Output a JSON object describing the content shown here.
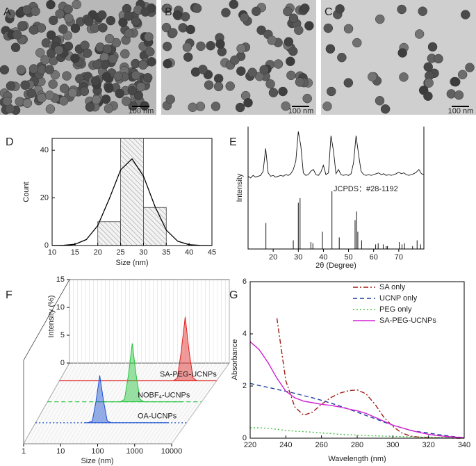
{
  "panel_labels": [
    "A",
    "B",
    "C",
    "D",
    "E",
    "F",
    "G"
  ],
  "images": [
    {
      "scale_bar": "100 nm"
    },
    {
      "scale_bar": "100 nm"
    },
    {
      "scale_bar": "100 nm"
    }
  ],
  "chart_data": [
    {
      "type": "histogram",
      "xlabel": "Size (nm)",
      "ylabel": "Count",
      "bins": [
        20,
        25,
        30,
        35
      ],
      "counts": [
        10,
        45,
        16
      ],
      "fit": {
        "x": [
          10,
          12.5,
          15,
          17.5,
          20,
          22.5,
          25,
          27.5,
          30,
          32.5,
          35,
          37.5,
          40,
          42.5,
          45
        ],
        "values": [
          0,
          0.08,
          0.54,
          2.5,
          8.4,
          19.5,
          31.8,
          36.4,
          29.2,
          16.5,
          6.5,
          1.8,
          0.35,
          0.05,
          0
        ]
      },
      "xlim": [
        10,
        45
      ],
      "xticks": [
        10,
        15,
        20,
        25,
        30,
        35,
        40,
        45
      ],
      "ylim": [
        0,
        45
      ],
      "yticks": [
        0,
        20,
        40
      ]
    },
    {
      "type": "xrd",
      "xlabel": "2θ (Degree)",
      "ylabel": "Intensity",
      "annotation": "JCPDS：#28-1192",
      "x": [
        10,
        11,
        12,
        13,
        14,
        15,
        16,
        17,
        18,
        19,
        20,
        21,
        22,
        23,
        24,
        25,
        26,
        27,
        28,
        29,
        30,
        31,
        32,
        33,
        34,
        35,
        36,
        37,
        38,
        39,
        40,
        41,
        42,
        43,
        44,
        45,
        46,
        47,
        48,
        49,
        50,
        51,
        52,
        53,
        54,
        55,
        56,
        57,
        58,
        59,
        60,
        61,
        62,
        63,
        64,
        65,
        66,
        67,
        68,
        69,
        70,
        71,
        72,
        73,
        74,
        75,
        76,
        77,
        78,
        79,
        80
      ],
      "values": [
        12,
        10,
        13,
        11,
        12,
        13,
        18,
        45,
        16,
        12,
        13,
        11,
        12,
        13,
        12,
        14,
        13,
        15,
        20,
        30,
        65,
        48,
        16,
        13,
        14,
        18,
        20,
        14,
        13,
        17,
        25,
        14,
        16,
        60,
        42,
        15,
        20,
        14,
        13,
        14,
        13,
        15,
        28,
        60,
        38,
        18,
        14,
        13,
        14,
        13,
        14,
        15,
        16,
        14,
        15,
        13,
        14,
        13,
        14,
        15,
        17,
        15,
        16,
        14,
        13,
        14,
        15,
        17,
        20,
        15,
        14
      ],
      "reference": {
        "positions": [
          17.1,
          28,
          30,
          30.7,
          35,
          35.8,
          39.6,
          43.4,
          46.3,
          52.6,
          53.2,
          53.7,
          55.2,
          60.8,
          61.8,
          63.8,
          65,
          65.5,
          70.2,
          71.3,
          72.3,
          75.5,
          77.3,
          78.7
        ],
        "heights": [
          0.45,
          0.15,
          0.8,
          0.88,
          0.12,
          0.1,
          0.3,
          1,
          0.2,
          0.5,
          0.65,
          0.3,
          0.15,
          0.08,
          0.1,
          0.08,
          0.05,
          0.05,
          0.12,
          0.08,
          0.1,
          0.05,
          0.15,
          0.08
        ]
      },
      "xlim": [
        10,
        80
      ],
      "xticks": [
        20,
        30,
        40,
        50,
        60,
        70
      ],
      "ylim": [
        0,
        70
      ]
    },
    {
      "type": "waterfall",
      "xlabel": "Size (nm)",
      "ylabel": "Intensity (%)",
      "log_x": true,
      "x": [
        20,
        25,
        32,
        40,
        50,
        63,
        79,
        100,
        126,
        158,
        200,
        251,
        316,
        398,
        501,
        631,
        794,
        1000,
        1259,
        1585,
        1995,
        2512,
        3162
      ],
      "series": [
        {
          "name": "SA-PEG-UCNPs",
          "color": "#e0201e",
          "line_style": "solid",
          "values": [
            0,
            0,
            0,
            0,
            0,
            0,
            0,
            0,
            0,
            0,
            0,
            0,
            0,
            0,
            0,
            0,
            0,
            0.51,
            5.3,
            11.5,
            5.3,
            0.51,
            0
          ]
        },
        {
          "name": "NOBF₄-UCNPs",
          "color": "#22c33a",
          "line_style": "dashed",
          "values": [
            0,
            0,
            0,
            0,
            0,
            0,
            0,
            0.46,
            4.8,
            10.5,
            4.8,
            0.46,
            0,
            0,
            0,
            0,
            0,
            0,
            0,
            0,
            0,
            0,
            0
          ]
        },
        {
          "name": "OA-UCNPs",
          "color": "#1a4fd0",
          "line_style": "dotted",
          "values": [
            0,
            0,
            0.37,
            3.9,
            8.5,
            3.9,
            0.37,
            0,
            0,
            0,
            0,
            0,
            0,
            0,
            0,
            0,
            0,
            0,
            0,
            0,
            0,
            0,
            0
          ]
        }
      ],
      "xlim": [
        1,
        10000
      ],
      "xticks": [
        1,
        10,
        100,
        1000,
        10000
      ],
      "ylim": [
        0,
        15
      ],
      "yticks": [
        0,
        5,
        10,
        15
      ]
    },
    {
      "type": "line",
      "xlabel": "Wavelength (nm)",
      "ylabel": "Absorbance",
      "legend": "upper right",
      "x": [
        220,
        225,
        230,
        235,
        240,
        245,
        250,
        255,
        260,
        265,
        270,
        275,
        280,
        285,
        290,
        295,
        300,
        305,
        310,
        315,
        320,
        325,
        330,
        335,
        340
      ],
      "series": [
        {
          "name": "SA only",
          "color": "#a01a14",
          "line_style": "dashdot",
          "values": [
            null,
            null,
            null,
            4.6,
            2.2,
            1.2,
            0.88,
            1.0,
            1.3,
            1.55,
            1.72,
            1.82,
            1.85,
            1.7,
            1.3,
            0.8,
            0.45,
            0.2,
            0.08,
            0.04,
            0.02,
            0.01,
            0.01,
            0,
            0
          ]
        },
        {
          "name": "UCNP only",
          "color": "#1f3fa0",
          "line_style": "dashed",
          "values": [
            2.1,
            2.02,
            1.95,
            1.87,
            1.8,
            1.72,
            1.63,
            1.55,
            1.45,
            1.35,
            1.24,
            1.12,
            1.0,
            0.87,
            0.75,
            0.62,
            0.5,
            0.4,
            0.3,
            0.24,
            0.2,
            0.14,
            0.1,
            0.05,
            0.02
          ]
        },
        {
          "name": "PEG only",
          "color": "#40c040",
          "line_style": "dotted",
          "values": [
            0.4,
            0.4,
            0.38,
            0.34,
            0.3,
            0.27,
            0.25,
            0.23,
            0.2,
            0.18,
            0.15,
            0.13,
            0.12,
            0.1,
            0.09,
            0.08,
            0.07,
            0.06,
            0.05,
            0.04,
            0.04,
            0.03,
            0.03,
            0.02,
            0.02
          ]
        },
        {
          "name": "SA-PEG-UCNPs",
          "color": "#d020d0",
          "line_style": "solid",
          "values": [
            3.7,
            3.4,
            2.9,
            2.3,
            1.8,
            1.55,
            1.42,
            1.36,
            1.3,
            1.26,
            1.2,
            1.12,
            1.05,
            0.95,
            0.8,
            0.65,
            0.5,
            0.4,
            0.3,
            0.22,
            0.15,
            0.1,
            0.07,
            0.04,
            0.02
          ]
        }
      ],
      "xlim": [
        220,
        340
      ],
      "xticks": [
        220,
        240,
        260,
        280,
        300,
        320,
        340
      ],
      "ylim": [
        0,
        6
      ],
      "yticks": [
        0,
        2,
        4,
        6
      ]
    }
  ]
}
